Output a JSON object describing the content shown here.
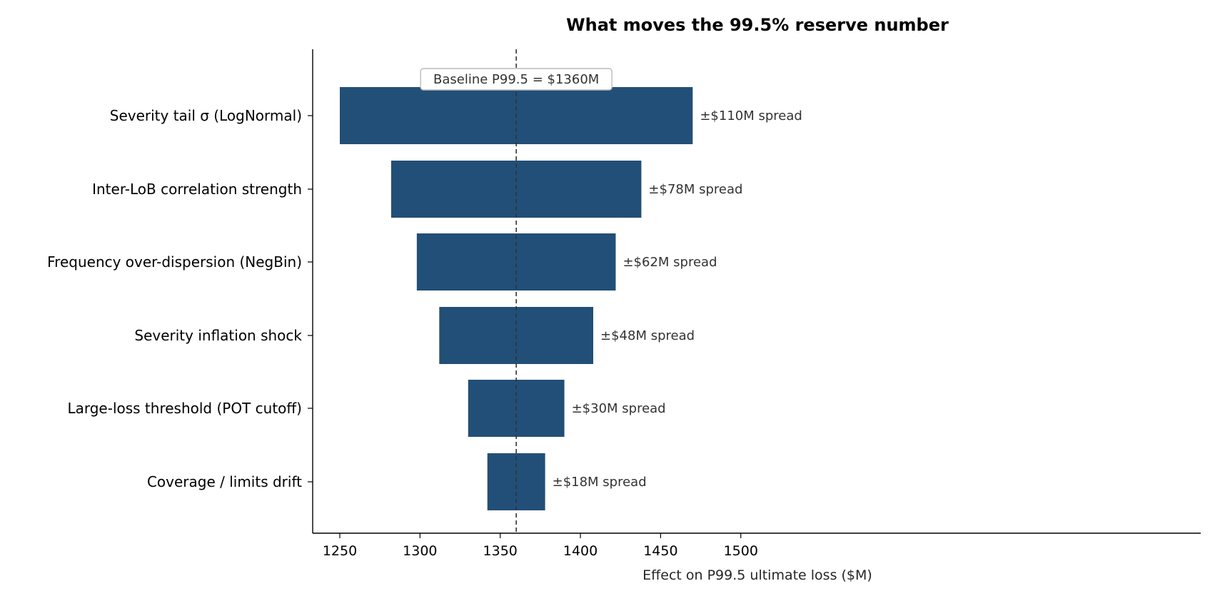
{
  "chart_data": {
    "type": "bar",
    "orientation": "horizontal",
    "subtype": "tornado",
    "title": "What moves the 99.5% reserve number",
    "xlabel": "Effect on P99.5 ultimate loss  ($M)",
    "ylabel": "",
    "xlim": [
      1242,
      1519
    ],
    "xticks": [
      1250,
      1300,
      1350,
      1400,
      1450,
      1500
    ],
    "baseline": {
      "value": 1360,
      "label": "Baseline P99.5 = $1360M"
    },
    "grid": false,
    "legend": "none",
    "bar_color": "#224f77",
    "categories": [
      "Severity tail σ (LogNormal)",
      "Inter-LoB correlation strength",
      "Frequency over-dispersion (NegBin)",
      "Severity inflation shock",
      "Large-loss threshold (POT cutoff)",
      "Coverage / limits drift"
    ],
    "low": [
      1250,
      1282,
      1298,
      1312,
      1330,
      1342
    ],
    "high": [
      1470,
      1438,
      1422,
      1408,
      1390,
      1378
    ],
    "annotations": [
      "±$110M spread",
      "±$78M spread",
      "±$62M spread",
      "±$48M spread",
      "±$30M spread",
      "±$18M spread"
    ]
  }
}
